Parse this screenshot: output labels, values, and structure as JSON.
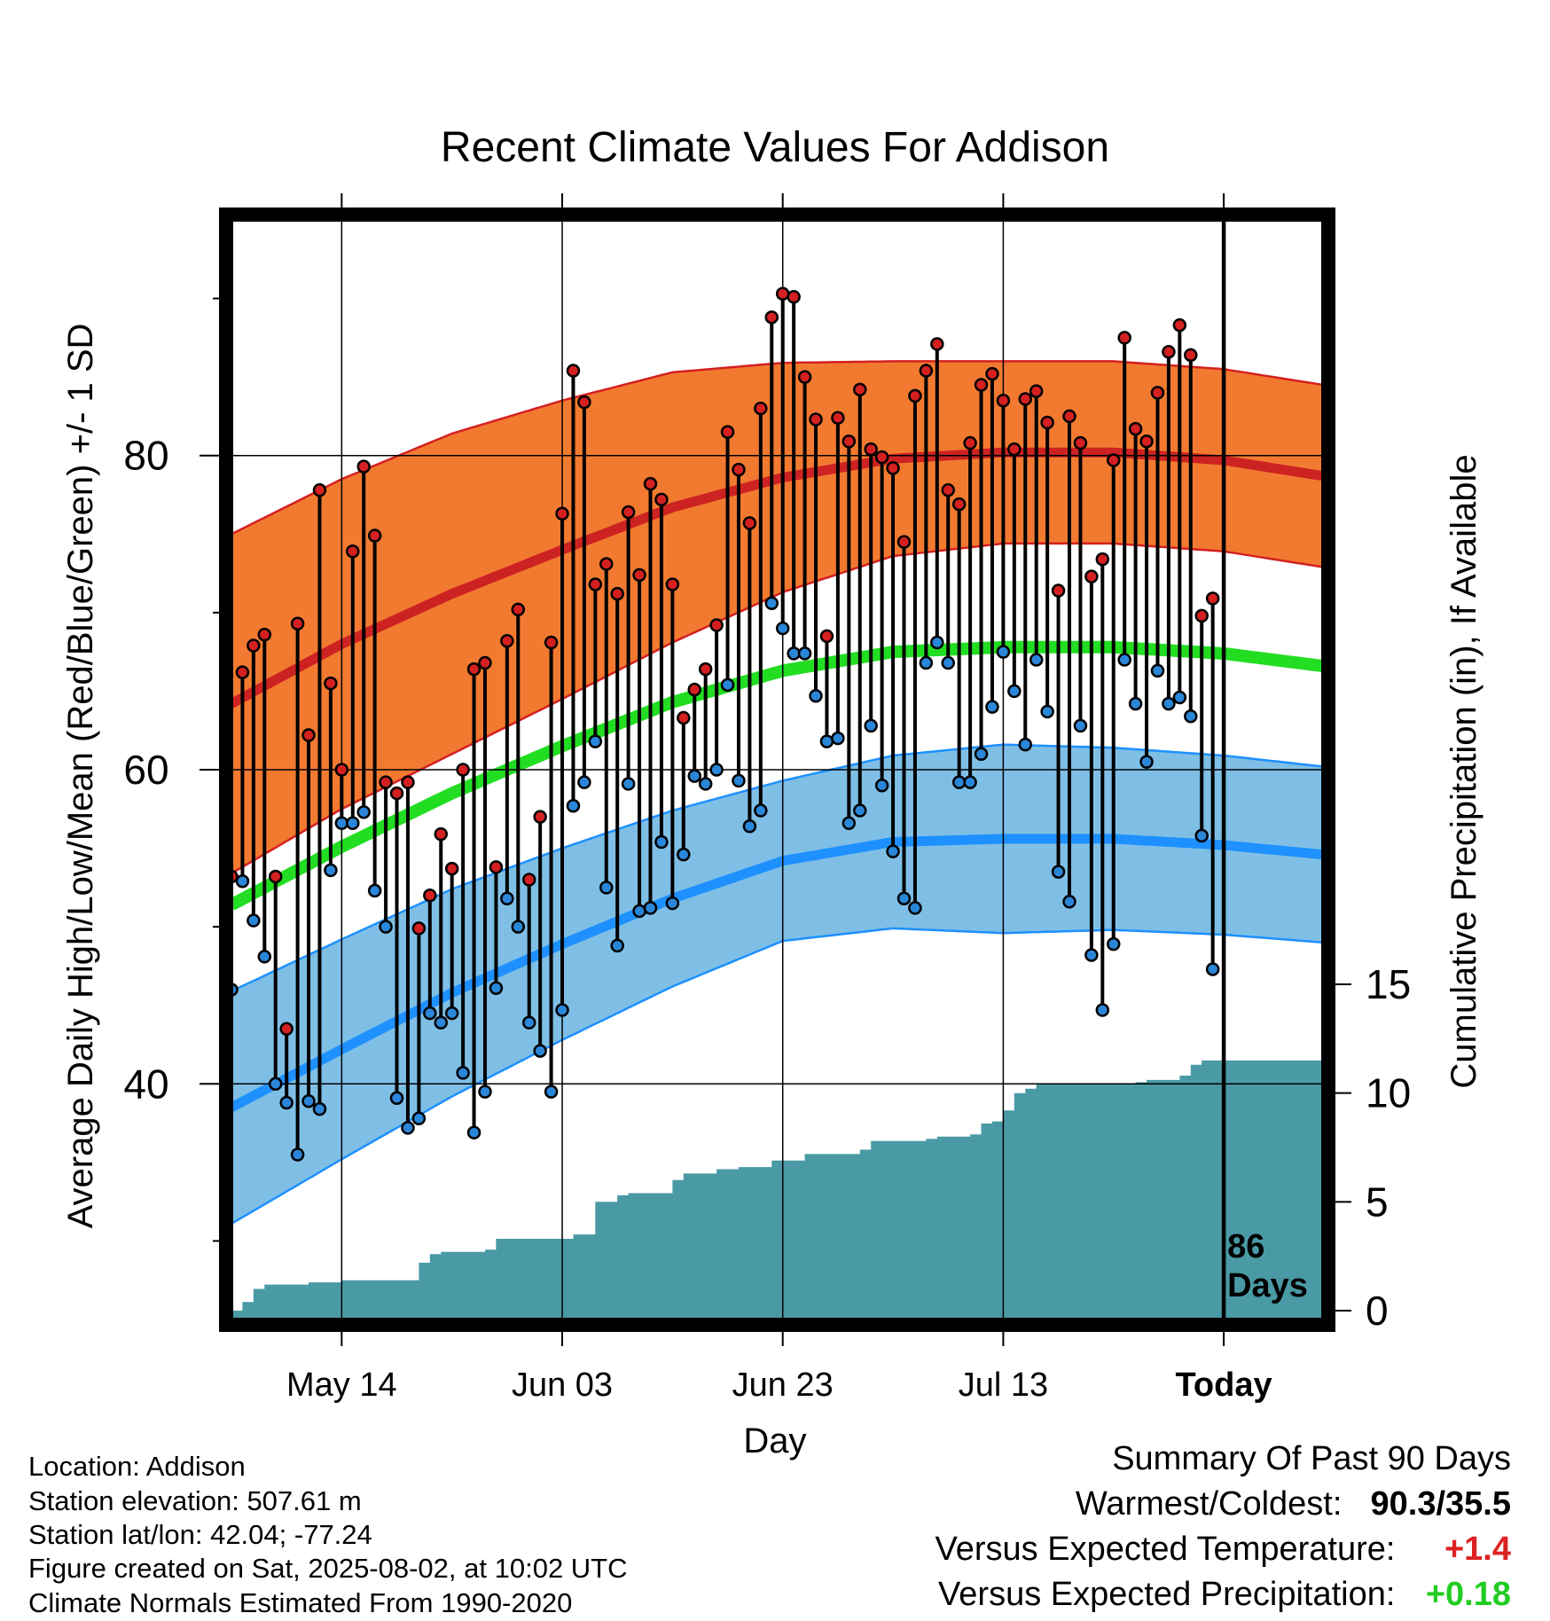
{
  "chart_data": {
    "type": "line",
    "title": "Recent Climate Values For Addison",
    "xlabel": "Day",
    "ylabel": "Average Daily High/Low/Mean (Red/Blue/Green) +/- 1 SD",
    "y2label": "Cumulative Precipitation (in), If Available",
    "ylim": [
      25,
      95
    ],
    "y2lim": [
      0,
      50
    ],
    "x_ticks": [
      "May 14",
      "Jun 03",
      "Jun 23",
      "Jul 13",
      "Today"
    ],
    "y_ticks": [
      40,
      60,
      80
    ],
    "y2_ticks": [
      0,
      5,
      10,
      15
    ],
    "grid": true,
    "today_marker": {
      "label_line1": "86",
      "label_line2": "Days"
    },
    "colors": {
      "high_band": "#f27a30",
      "high_mean": "#cc2222",
      "low_band": "#7fbfe6",
      "low_mean": "#1e90ff",
      "mean_line": "#22dd22",
      "precip": "#4a9aa5",
      "high_dot": "#d42020",
      "low_dot": "#2a86d8"
    },
    "normals": {
      "x": [
        0,
        10,
        20,
        30,
        40,
        50,
        60,
        70,
        80,
        90,
        99
      ],
      "high_mean": [
        64.2,
        68.0,
        71.2,
        74.0,
        76.7,
        78.6,
        79.8,
        80.2,
        80.2,
        79.7,
        78.7
      ],
      "high_sd": [
        10.8,
        10.5,
        10.2,
        9.5,
        8.6,
        7.3,
        6.2,
        5.8,
        5.8,
        5.8,
        5.8
      ],
      "low_mean": [
        38.5,
        42.2,
        45.8,
        48.9,
        51.8,
        54.2,
        55.4,
        55.6,
        55.6,
        55.2,
        54.6
      ],
      "low_sd": [
        7.4,
        7.0,
        6.6,
        6.1,
        5.6,
        5.1,
        5.5,
        6.0,
        5.8,
        5.7,
        5.6
      ],
      "mean": [
        51.4,
        55.1,
        58.5,
        61.5,
        64.3,
        66.3,
        67.5,
        67.8,
        67.8,
        67.4,
        66.6
      ]
    },
    "daily": {
      "start_day": 0,
      "high": [
        53.2,
        66.2,
        67.9,
        68.6,
        53.2,
        43.5,
        69.3,
        62.2,
        77.8,
        65.5,
        60.0,
        73.9,
        79.3,
        74.9,
        59.2,
        58.5,
        59.2,
        49.9,
        52.0,
        55.9,
        53.7,
        60.0,
        66.4,
        66.8,
        53.8,
        68.2,
        70.2,
        53.0,
        57.0,
        68.1,
        76.3,
        85.4,
        83.4,
        71.8,
        73.1,
        71.2,
        76.4,
        72.4,
        78.2,
        77.2,
        71.8,
        63.3,
        65.1,
        66.4,
        69.2,
        81.5,
        79.1,
        75.7,
        83.0,
        88.8,
        90.3,
        90.1,
        85.0,
        82.3,
        68.5,
        82.4,
        80.9,
        84.2,
        80.4,
        79.9,
        79.2,
        74.5,
        83.8,
        85.4,
        87.1,
        77.8,
        76.9,
        80.8,
        84.5,
        85.2,
        83.5,
        80.4,
        83.6,
        84.1,
        82.1,
        71.4,
        82.5,
        80.8,
        72.3,
        73.4,
        79.7,
        87.5,
        81.7,
        80.9,
        84.0,
        86.6,
        88.3,
        86.4,
        69.8,
        70.9
      ],
      "low": [
        46.0,
        52.9,
        50.4,
        48.1,
        40.0,
        38.8,
        35.5,
        38.9,
        38.4,
        53.6,
        56.6,
        56.6,
        57.3,
        52.3,
        50.0,
        39.1,
        37.2,
        37.8,
        44.5,
        43.9,
        44.5,
        40.7,
        36.9,
        39.5,
        46.1,
        51.8,
        50.0,
        43.9,
        42.1,
        39.5,
        44.7,
        57.7,
        59.2,
        61.8,
        52.5,
        48.8,
        59.1,
        51.0,
        51.2,
        55.4,
        51.5,
        54.6,
        59.6,
        59.1,
        60.0,
        65.4,
        59.3,
        56.4,
        57.4,
        70.6,
        69.0,
        67.4,
        67.4,
        64.7,
        61.8,
        62.0,
        56.6,
        57.4,
        62.8,
        59.0,
        54.8,
        51.8,
        51.2,
        66.8,
        68.1,
        66.8,
        59.2,
        59.2,
        61.0,
        64.0,
        67.5,
        65.0,
        61.6,
        67.0,
        63.7,
        53.5,
        51.6,
        62.8,
        48.2,
        44.7,
        48.9,
        67.0,
        64.2,
        60.5,
        66.3,
        64.2,
        64.6,
        63.4,
        55.8,
        47.3
      ]
    },
    "precip": {
      "x": [
        0,
        1,
        2,
        3,
        6,
        7,
        9,
        10,
        16,
        17,
        18,
        19,
        22,
        23,
        24,
        25,
        30,
        31,
        32,
        33,
        35,
        36,
        40,
        41,
        42,
        44,
        46,
        49,
        51,
        52,
        56,
        57,
        58,
        62,
        63,
        64,
        66,
        67,
        68,
        69,
        70,
        71,
        72,
        73,
        76,
        81,
        82,
        83,
        85,
        86,
        87,
        88,
        89,
        99
      ],
      "y": [
        0.0,
        0.4,
        1.0,
        1.2,
        1.2,
        1.3,
        1.3,
        1.4,
        1.4,
        2.2,
        2.6,
        2.7,
        2.7,
        2.8,
        3.3,
        3.3,
        3.3,
        3.5,
        3.5,
        5.0,
        5.3,
        5.4,
        6.0,
        6.3,
        6.3,
        6.5,
        6.6,
        6.9,
        6.9,
        7.2,
        7.2,
        7.4,
        7.8,
        7.8,
        7.9,
        8.0,
        8.0,
        8.1,
        8.6,
        8.7,
        9.2,
        10.0,
        10.2,
        10.4,
        10.4,
        10.4,
        10.5,
        10.6,
        10.6,
        10.8,
        11.3,
        11.5,
        11.5,
        11.5
      ]
    }
  },
  "meta": {
    "location": "Location: Addison",
    "elevation": "Station elevation: 507.61 m",
    "latlon": "Station lat/lon: 42.04; -77.24",
    "created": "Figure created on Sat, 2025-08-02, at 10:02 UTC",
    "normals": "Climate Normals Estimated From 1990-2020"
  },
  "summary": {
    "heading": "Summary Of Past 90 Days",
    "warmcold_label": "Warmest/Coldest:",
    "warmcold_value": "90.3/35.5",
    "temp_label": "Versus Expected Temperature:",
    "temp_value": "+1.4",
    "temp_color": "#dd2222",
    "precip_label": "Versus Expected Precipitation:",
    "precip_value": "+0.18",
    "precip_color": "#22cc22"
  }
}
